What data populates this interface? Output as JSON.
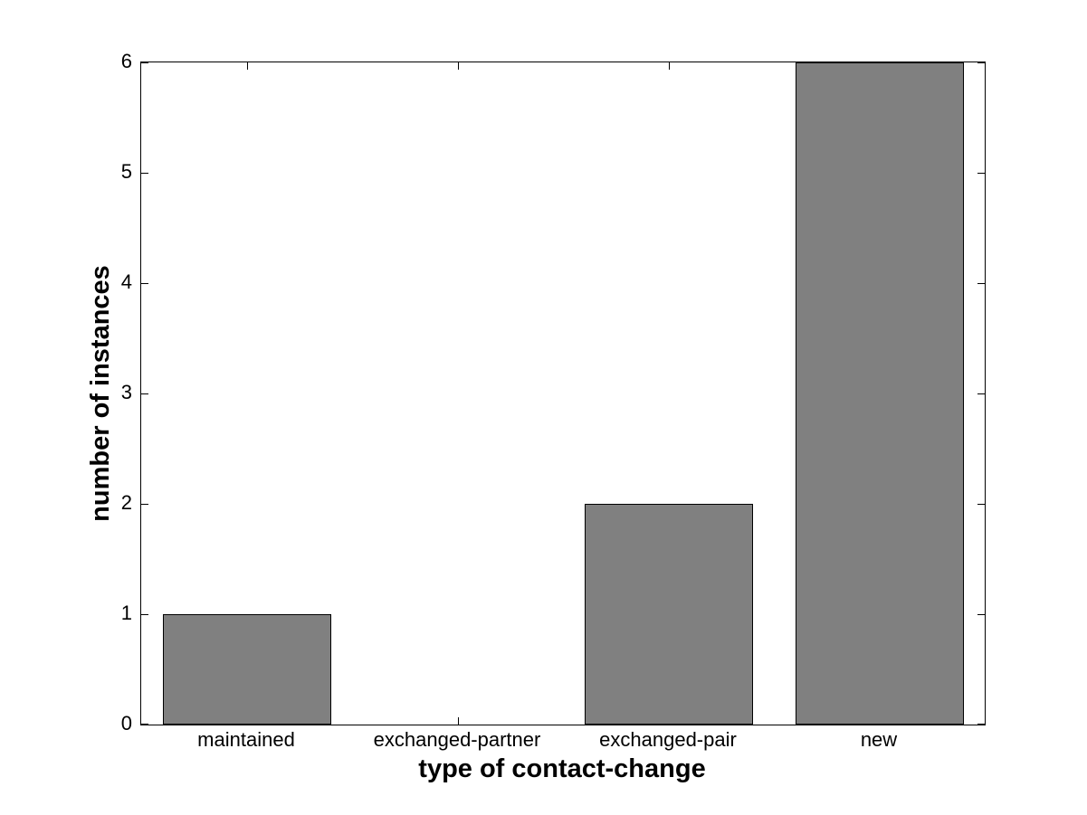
{
  "chart_data": {
    "type": "bar",
    "categories": [
      "maintained",
      "exchanged-partner",
      "exchanged-pair",
      "new"
    ],
    "values": [
      1,
      0,
      2,
      6
    ],
    "title": "",
    "xlabel": "type of contact-change",
    "ylabel": "number of instances",
    "ylim": [
      0,
      6
    ],
    "yticks": [
      0,
      1,
      2,
      3,
      4,
      5,
      6
    ],
    "bar_width_fraction": 0.8,
    "grid": false,
    "legend": "none",
    "colors": {
      "bar_fill": "#808080",
      "bar_edge": "#000000",
      "axis": "#000000",
      "background": "#ffffff",
      "text": "#000000"
    }
  }
}
